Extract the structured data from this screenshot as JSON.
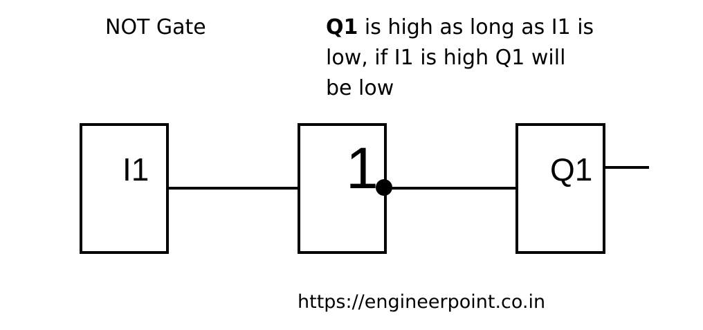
{
  "title": "NOT Gate",
  "description": {
    "bold_part": "Q1",
    "line1_rest": " is high as long as I1 is",
    "line2": "low, if I1 is high Q1 will",
    "line3": "be low"
  },
  "blocks": {
    "input_label": "I1",
    "gate_label": "1",
    "output_label": "Q1"
  },
  "footer_url": "https://engineerpoint.co.in"
}
